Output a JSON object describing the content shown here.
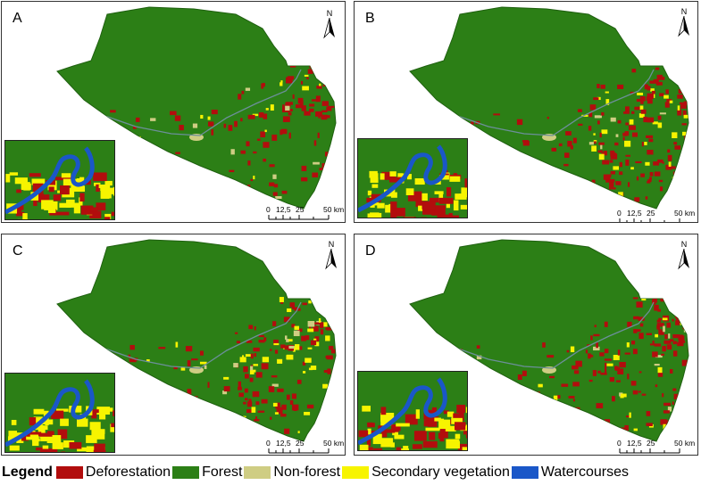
{
  "panels": [
    {
      "label": "A",
      "north": "N",
      "scale": [
        "0",
        "12,5",
        "25",
        "50 km"
      ]
    },
    {
      "label": "B",
      "north": "N",
      "scale": [
        "0",
        "12,5",
        "25",
        "50 km"
      ]
    },
    {
      "label": "C",
      "north": "N",
      "scale": [
        "0",
        "12,5",
        "25",
        "50 km"
      ]
    },
    {
      "label": "D",
      "north": "N",
      "scale": [
        "0",
        "12,5",
        "25",
        "50 km"
      ]
    }
  ],
  "legend": {
    "title": "Legend",
    "items": [
      {
        "label": "Deforestation",
        "color": "#b20d0d"
      },
      {
        "label": "Forest",
        "color": "#2c7f16"
      },
      {
        "label": "Non-forest",
        "color": "#cfcd83"
      },
      {
        "label": "Secondary vegetation",
        "color": "#f7f400"
      },
      {
        "label": "Watercourses",
        "color": "#1a57c8"
      }
    ]
  }
}
